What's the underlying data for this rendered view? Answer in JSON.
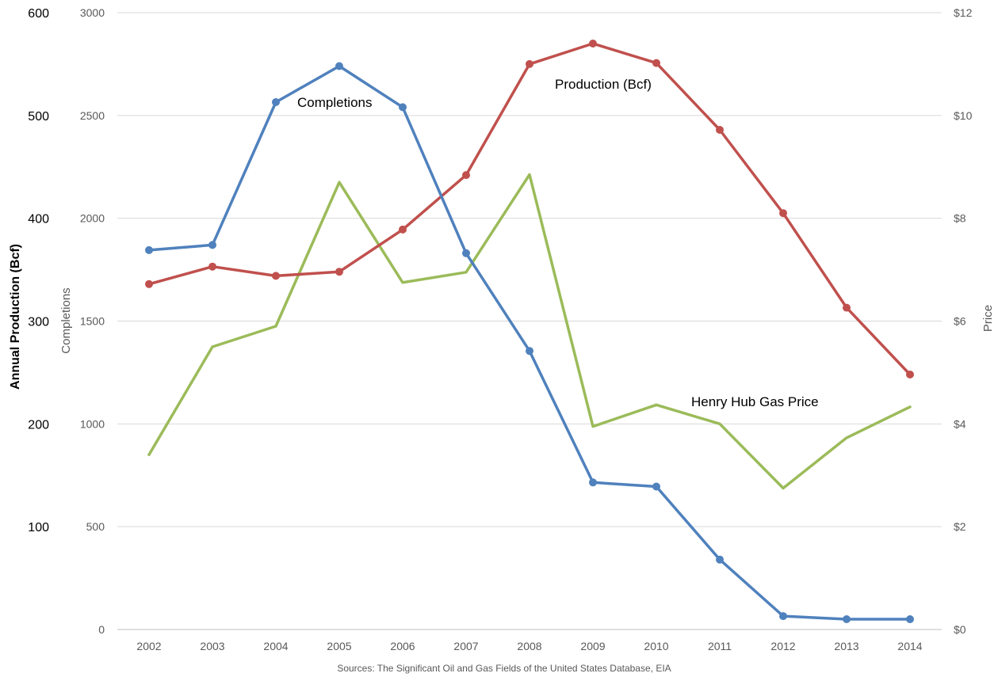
{
  "chart_data": {
    "type": "line",
    "categories": [
      "2002",
      "2003",
      "2004",
      "2005",
      "2006",
      "2007",
      "2008",
      "2009",
      "2010",
      "2011",
      "2012",
      "2013",
      "2014"
    ],
    "series": [
      {
        "name": "Completions",
        "axis": "completions",
        "color": "#4f81bd",
        "markers": true,
        "values": [
          1845,
          1870,
          2565,
          2740,
          2540,
          1830,
          1355,
          715,
          695,
          340,
          65,
          50,
          50
        ]
      },
      {
        "name": "Production (Bcf)",
        "axis": "production",
        "color": "#c0504d",
        "markers": true,
        "values": [
          336,
          353,
          344,
          348,
          389,
          442,
          550,
          570,
          551,
          486,
          405,
          313,
          248
        ]
      },
      {
        "name": "Henry Hub Gas Price",
        "axis": "price",
        "color": "#9bbb59",
        "markers": false,
        "values": [
          3.4,
          5.5,
          5.9,
          8.7,
          6.75,
          6.95,
          8.85,
          3.95,
          4.37,
          4.0,
          2.75,
          3.73,
          4.33
        ]
      }
    ],
    "axes": {
      "production": {
        "label": "Annual Production (Bcf)",
        "ticks": [
          "600",
          "500",
          "400",
          "300",
          "200",
          "100"
        ],
        "values": [
          600,
          500,
          400,
          300,
          200,
          100
        ],
        "ylim": [
          0,
          600
        ]
      },
      "completions": {
        "label": "Completions",
        "ticks": [
          "3000",
          "2500",
          "2000",
          "1500",
          "1000",
          "500",
          "0"
        ],
        "values": [
          3000,
          2500,
          2000,
          1500,
          1000,
          500,
          0
        ],
        "ylim": [
          0,
          3000
        ]
      },
      "price": {
        "label": "Price",
        "ticks": [
          "$12",
          "$10",
          "$8",
          "$6",
          "$4",
          "$2",
          "$0"
        ],
        "values": [
          12,
          10,
          8,
          6,
          4,
          2,
          0
        ],
        "ylim": [
          0,
          12
        ]
      }
    },
    "annotations": [
      {
        "text": "Completions",
        "series": "Completions"
      },
      {
        "text": "Production (Bcf)",
        "series": "Production (Bcf)"
      },
      {
        "text": "Henry Hub Gas Price",
        "series": "Henry Hub Gas Price"
      }
    ],
    "grid": true,
    "legend": "inline labels"
  },
  "source_note": "Sources:  The Significant Oil and Gas Fields of the United States Database, EIA"
}
